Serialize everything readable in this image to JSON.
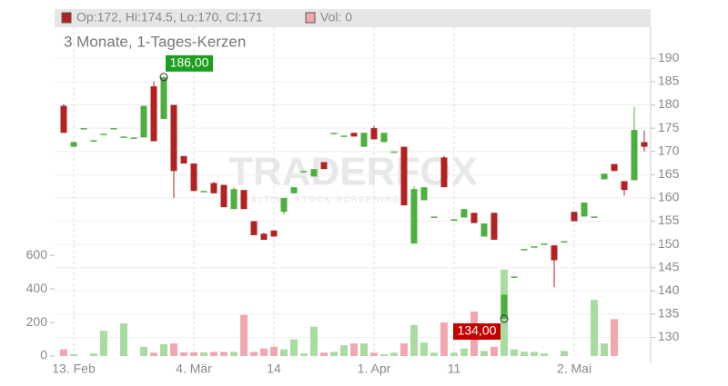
{
  "chart_data": {
    "type": "candlestick",
    "legend": {
      "candles": "Op:172, Hi:174.5, Lo:170, Cl:171",
      "volume": "Vol: 0"
    },
    "subtitle": "3 Monate, 1-Tages-Kerzen",
    "watermark": "TRADERFOX",
    "watermark_sub": "REALTIME STOCK SCREENING",
    "high_label": "186,00",
    "low_label": "134,00",
    "up_color": "#4caf3f",
    "down_color": "#b22222",
    "vol_up_color": "#a8dca0",
    "vol_down_color": "#f2a6b0",
    "categories": [
      null,
      "13. Feb",
      null,
      null,
      null,
      null,
      null,
      null,
      null,
      null,
      null,
      null,
      null,
      "4. Mär",
      null,
      null,
      null,
      null,
      null,
      null,
      null,
      "14",
      null,
      null,
      null,
      null,
      null,
      null,
      null,
      null,
      null,
      "1. Apr",
      null,
      null,
      null,
      null,
      null,
      null,
      null,
      "11",
      null,
      null,
      null,
      null,
      null,
      null,
      null,
      null,
      null,
      null,
      null,
      "2. Mai",
      null,
      null,
      null,
      null,
      null,
      null,
      null
    ],
    "open": [
      179.8,
      171,
      175,
      172.4,
      173.8,
      175,
      173.2,
      173,
      173,
      184,
      177,
      180,
      169,
      167.4,
      161.5,
      163.2,
      162.8,
      157.6,
      161.7,
      155,
      152.3,
      153,
      157,
      161,
      165.8,
      164.6,
      167.7,
      174,
      173.4,
      174,
      171,
      175,
      172,
      170,
      171,
      150.2,
      159.5,
      156,
      168.7,
      155.4,
      155.8,
      156.8,
      151.7,
      156.8,
      134,
      143.1,
      149,
      149.6,
      150.2,
      149.8,
      150.7,
      157,
      156,
      156,
      164,
      167.3,
      163.6,
      163.8,
      172
    ],
    "high": [
      180.2,
      172.2,
      175,
      172.4,
      173.8,
      175,
      173.2,
      173,
      179.8,
      185,
      186,
      180,
      169,
      167.4,
      161.5,
      163.5,
      162.8,
      162.3,
      161.7,
      155,
      152.5,
      153,
      160,
      162.3,
      165.8,
      166.2,
      167.7,
      174,
      173.4,
      174,
      174,
      175.5,
      174,
      170,
      171,
      162.5,
      162.3,
      156,
      169,
      155.4,
      157.6,
      156.8,
      154.5,
      156.8,
      139.2,
      143.1,
      149,
      149.6,
      150.2,
      149.8,
      150.7,
      157,
      159,
      156,
      165.2,
      167.3,
      163.6,
      179.5,
      174.5
    ],
    "low": [
      174,
      171,
      175,
      172.4,
      173.8,
      175,
      173.2,
      173,
      173,
      172.2,
      177,
      160,
      167.4,
      161.5,
      161.5,
      161,
      158,
      157.6,
      157.6,
      152,
      151,
      151.7,
      156.5,
      161,
      165.8,
      164.6,
      166.2,
      174,
      173.4,
      173.2,
      171,
      172.6,
      172,
      170,
      158.4,
      150.2,
      159.5,
      156,
      162.3,
      155.4,
      155.8,
      154.6,
      151.7,
      151,
      134,
      143.1,
      149,
      149.6,
      150.2,
      140.8,
      150.7,
      155,
      156,
      156,
      164,
      165.8,
      160.5,
      163.8,
      170
    ],
    "close": [
      174,
      172,
      175,
      172.4,
      173.8,
      175,
      173.2,
      173,
      179.8,
      172.2,
      186,
      165.8,
      167.4,
      161.5,
      161.5,
      161,
      158,
      161.9,
      157.6,
      152,
      151,
      151.7,
      160,
      162.3,
      165.8,
      166.2,
      166.2,
      174,
      173.4,
      173.2,
      174,
      172.6,
      174,
      170,
      158.4,
      161.9,
      162.3,
      156,
      162.3,
      155.4,
      157.6,
      154.6,
      154.5,
      151,
      139.2,
      143.1,
      149,
      149.6,
      150.2,
      146.6,
      150.7,
      155,
      159,
      156,
      165.2,
      165.8,
      161.7,
      174.6,
      171
    ],
    "volume": [
      40,
      10,
      0,
      15,
      150,
      0,
      195,
      0,
      55,
      20,
      70,
      75,
      22,
      22,
      22,
      25,
      25,
      25,
      245,
      25,
      45,
      55,
      40,
      100,
      15,
      175,
      20,
      25,
      65,
      75,
      75,
      20,
      10,
      20,
      75,
      185,
      80,
      20,
      200,
      20,
      45,
      265,
      30,
      55,
      515,
      40,
      25,
      25,
      15,
      0,
      30,
      0,
      0,
      335,
      75,
      220,
      0,
      0,
      0
    ],
    "ylim": [
      126,
      196
    ],
    "yticks": [
      130,
      135,
      140,
      145,
      150,
      155,
      160,
      165,
      170,
      175,
      180,
      185,
      190
    ],
    "y2lim": [
      0,
      1940
    ],
    "y2ticks": [
      0,
      200,
      400,
      600
    ],
    "grid": true
  }
}
